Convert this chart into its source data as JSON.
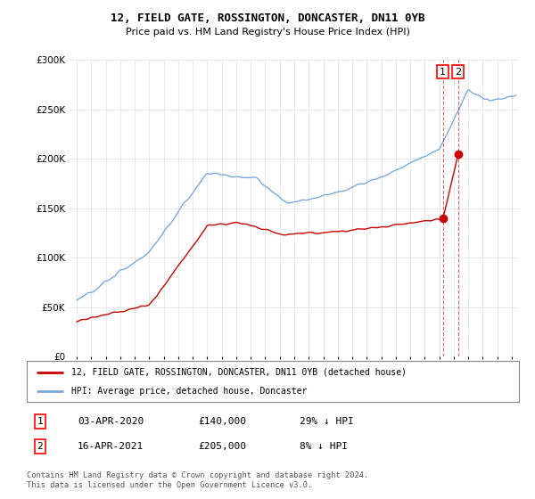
{
  "title": "12, FIELD GATE, ROSSINGTON, DONCASTER, DN11 0YB",
  "subtitle": "Price paid vs. HM Land Registry's House Price Index (HPI)",
  "legend_label_red": "12, FIELD GATE, ROSSINGTON, DONCASTER, DN11 0YB (detached house)",
  "legend_label_blue": "HPI: Average price, detached house, Doncaster",
  "point1_label": "1",
  "point1_date": "03-APR-2020",
  "point1_price": "£140,000",
  "point1_hpi": "29% ↓ HPI",
  "point1_year": 2020.25,
  "point1_value": 140000,
  "point2_label": "2",
  "point2_date": "16-APR-2021",
  "point2_price": "£205,000",
  "point2_hpi": "8% ↓ HPI",
  "point2_year": 2021.29,
  "point2_value": 205000,
  "footer": "Contains HM Land Registry data © Crown copyright and database right 2024.\nThis data is licensed under the Open Government Licence v3.0.",
  "ylim": [
    0,
    300000
  ],
  "xlim_start": 1994.5,
  "xlim_end": 2025.5,
  "background_color": "#ffffff",
  "plot_bg_color": "#ffffff",
  "red_color": "#cc0000",
  "blue_color": "#7aaadd",
  "grid_color": "#e0e0e0"
}
